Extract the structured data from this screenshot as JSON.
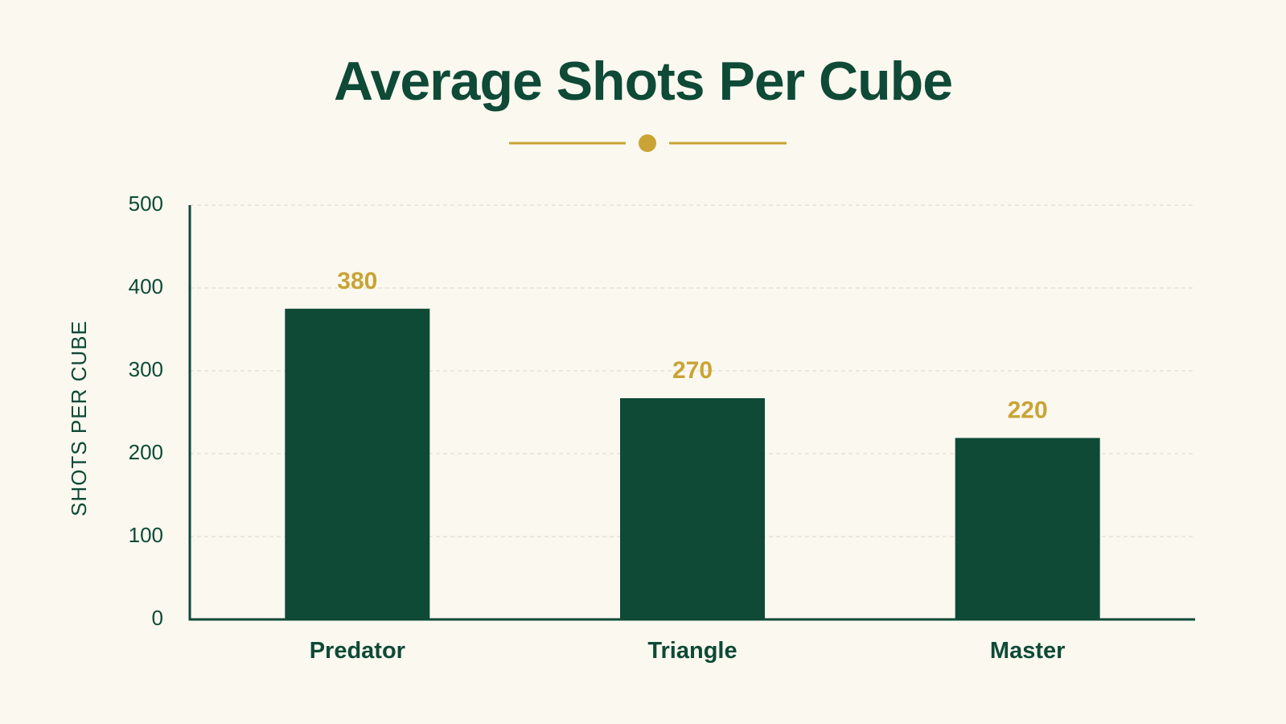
{
  "chart_data": {
    "type": "bar",
    "title": "Average Shots Per Cube",
    "xlabel": "",
    "ylabel": "SHOTS PER CUBE",
    "categories": [
      "Predator",
      "Triangle",
      "Master"
    ],
    "values": [
      375,
      267,
      219
    ],
    "data_labels": [
      "380",
      "270",
      "220"
    ],
    "ylim": [
      0,
      500
    ],
    "yticks": [
      0,
      100,
      200,
      300,
      400,
      500
    ],
    "grid": true,
    "legend": "none"
  },
  "colors": {
    "background": "#fbf8f0",
    "bar": "#0e4a36",
    "axis": "#0e4a36",
    "accent": "#c9a435",
    "grid": "#e2ddd2"
  }
}
